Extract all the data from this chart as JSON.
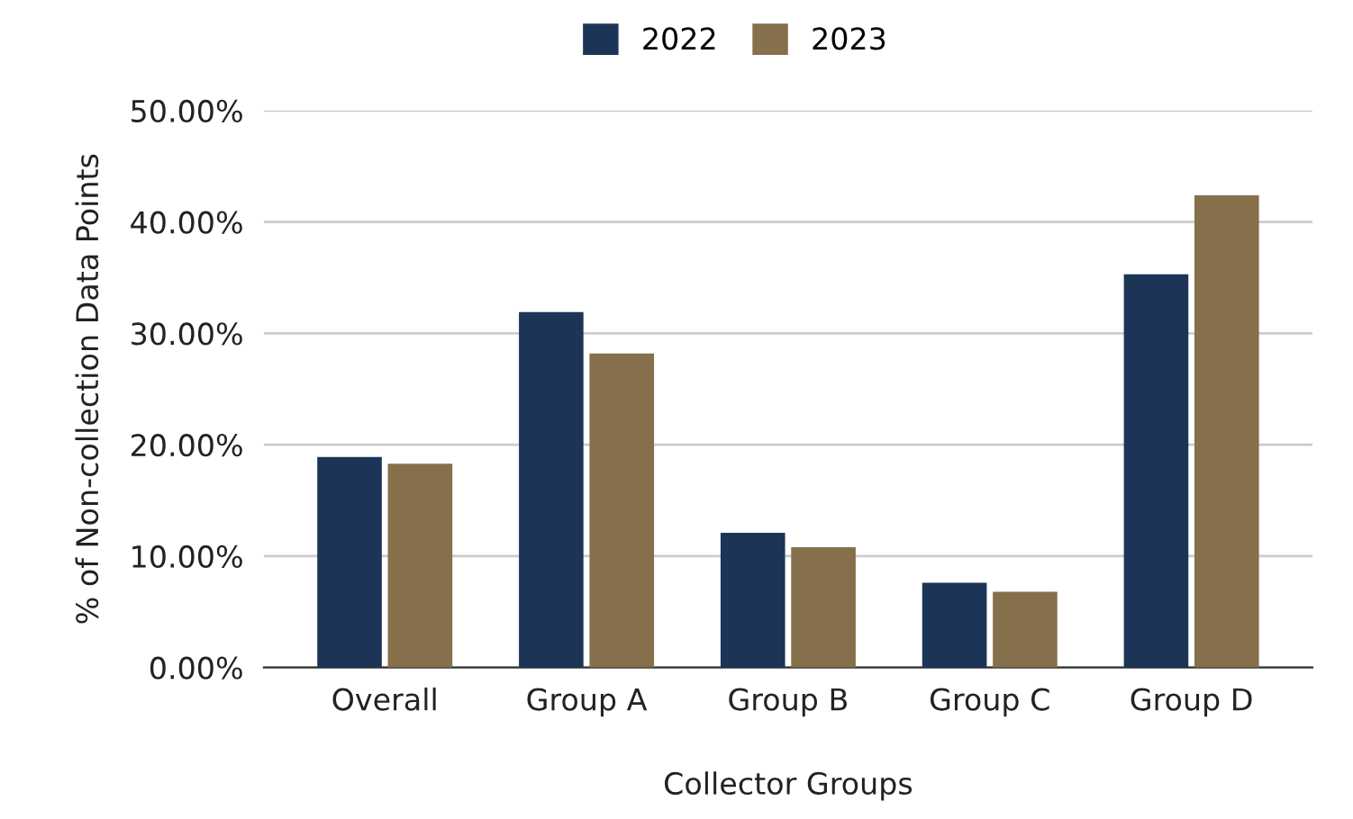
{
  "chart_data": {
    "type": "bar",
    "xlabel": "Collector Groups",
    "ylabel": "% of Non-collection Data Points",
    "categories": [
      "Overall",
      "Group A",
      "Group B",
      "Group C",
      "Group D"
    ],
    "series": [
      {
        "name": "2022",
        "color": "#1c3557",
        "values": [
          18.9,
          31.9,
          12.1,
          7.6,
          35.3
        ]
      },
      {
        "name": "2023",
        "color": "#85704b",
        "values": [
          18.3,
          28.2,
          10.8,
          6.8,
          42.4
        ]
      }
    ],
    "ylim": [
      0,
      50
    ],
    "yticks": [
      {
        "value": 0,
        "label": "0.00%"
      },
      {
        "value": 10,
        "label": "10.00%"
      },
      {
        "value": 20,
        "label": "20.00%"
      },
      {
        "value": 30,
        "label": "30.00%"
      },
      {
        "value": 40,
        "label": "40.00%"
      },
      {
        "value": 50,
        "label": "50.00%"
      }
    ],
    "grid": "y",
    "legend": "top"
  }
}
